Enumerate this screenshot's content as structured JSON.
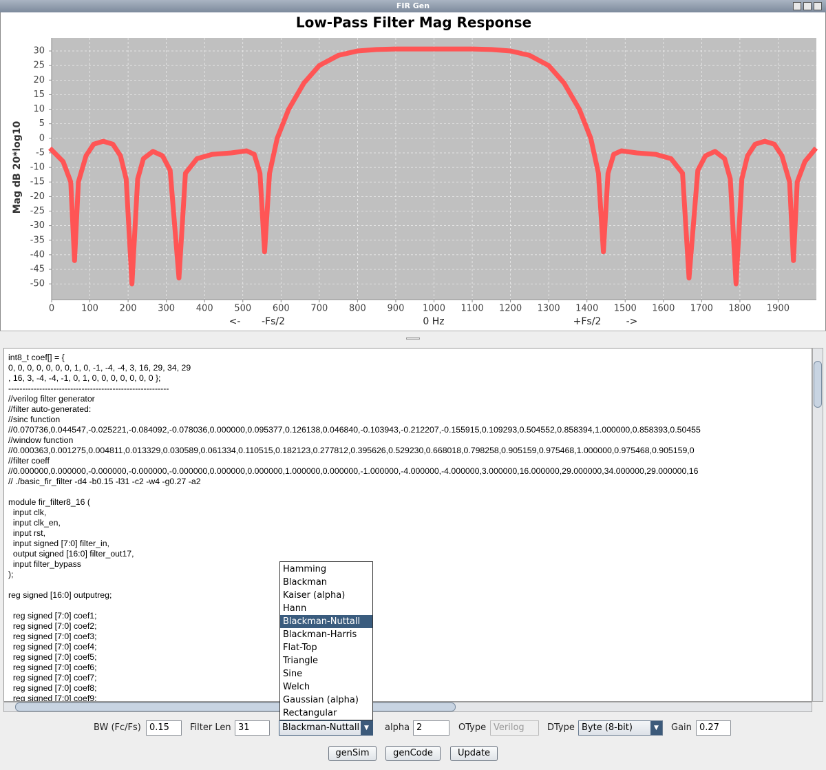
{
  "window": {
    "title": "FIR Gen"
  },
  "chart_data": {
    "type": "line",
    "title": "Low-Pass Filter Mag Response",
    "y_label": "Mag dB 20*log10",
    "annotations": [
      "<-",
      "-Fs/2",
      "0 Hz",
      "+Fs/2",
      "->"
    ],
    "x": [
      0,
      30,
      50,
      60,
      70,
      90,
      110,
      135,
      160,
      180,
      195,
      210,
      225,
      240,
      265,
      290,
      310,
      333,
      350,
      380,
      420,
      470,
      510,
      530,
      545,
      557,
      570,
      590,
      620,
      660,
      700,
      750,
      800,
      850,
      900,
      1000,
      1100,
      1150,
      1200,
      1250,
      1300,
      1340,
      1380,
      1410,
      1430,
      1443,
      1455,
      1470,
      1490,
      1530,
      1580,
      1620,
      1650,
      1667,
      1690,
      1710,
      1735,
      1760,
      1775,
      1790,
      1805,
      1820,
      1840,
      1865,
      1890,
      1910,
      1930,
      1940,
      1950,
      1970,
      1995
    ],
    "values": [
      -4,
      -8,
      -15,
      -42,
      -15,
      -6,
      -2,
      -1,
      -2,
      -6,
      -14,
      -50,
      -14,
      -7,
      -4.5,
      -6,
      -11,
      -48,
      -12,
      -7,
      -5.5,
      -5,
      -4.3,
      -5.5,
      -12,
      -39,
      -12,
      0,
      10,
      19,
      25,
      28.5,
      30,
      30.5,
      30.7,
      30.7,
      30.7,
      30.5,
      30,
      28.5,
      25,
      19,
      10,
      0,
      -12,
      -39,
      -12,
      -5.5,
      -4.3,
      -5,
      -5.5,
      -7,
      -12,
      -48,
      -11,
      -6,
      -4.5,
      -7,
      -14,
      -50,
      -14,
      -6,
      -2,
      -1,
      -2,
      -6,
      -15,
      -42,
      -15,
      -8,
      -4
    ],
    "color": "#ff5555",
    "xlim": [
      0,
      2000
    ],
    "ylim": [
      -55.4,
      34.5
    ],
    "xticks": [
      0,
      100,
      200,
      300,
      400,
      500,
      600,
      700,
      800,
      900,
      1000,
      1100,
      1200,
      1300,
      1400,
      1500,
      1600,
      1700,
      1800,
      1900
    ],
    "yticks": [
      30,
      25,
      20,
      15,
      10,
      5,
      0,
      -5,
      -10,
      -15,
      -20,
      -25,
      -30,
      -35,
      -40,
      -45,
      -50
    ],
    "grid": true
  },
  "code": "int8_t coef[] = {\n0, 0, 0, 0, 0, 0, 0, 1, 0, -1, -4, -4, 3, 16, 29, 34, 29\n, 16, 3, -4, -4, -1, 0, 1, 0, 0, 0, 0, 0, 0, 0 };\n---------------------------------------------------------\n//verilog filter generator\n//filter auto-generated:\n//sinc function\n//0.070736,0.044547,-0.025221,-0.084092,-0.078036,0.000000,0.095377,0.126138,0.046840,-0.103943,-0.212207,-0.155915,0.109293,0.504552,0.858394,1.000000,0.858393,0.50455\n//window function\n//0.000363,0.001275,0.004811,0.013329,0.030589,0.061334,0.110515,0.182123,0.277812,0.395626,0.529230,0.668018,0.798258,0.905159,0.975468,1.000000,0.975468,0.905159,0\n//filter coeff\n//0.000000,0.000000,-0.000000,-0.000000,-0.000000,0.000000,0.000000,1.000000,0.000000,-1.000000,-4.000000,-4.000000,3.000000,16.000000,29.000000,34.000000,29.000000,16\n// ./basic_fir_filter -d4 -b0.15 -l31 -c2 -w4 -g0.27 -a2\n\nmodule fir_filter8_16 (\n  input clk,\n  input clk_en,\n  input rst,\n  input signed [7:0] filter_in,\n  output signed [16:0] filter_out17,\n  input filter_bypass\n);\n\nreg signed [16:0] outputreg;\n\n  reg signed [7:0] coef1;\n  reg signed [7:0] coef2;\n  reg signed [7:0] coef3;\n  reg signed [7:0] coef4;\n  reg signed [7:0] coef5;\n  reg signed [7:0] coef6;\n  reg signed [7:0] coef7;\n  reg signed [7:0] coef8;\n  reg signed [7:0] coef9;",
  "dropdown": {
    "items": [
      "Hamming",
      "Blackman",
      "Kaiser (alpha)",
      "Hann",
      "Blackman-Nuttall",
      "Blackman-Harris",
      "Flat-Top",
      "Triangle",
      "Sine",
      "Welch",
      "Gaussian (alpha)",
      "Rectangular"
    ],
    "selected": 4
  },
  "controls": {
    "bw_label": "BW (Fc/Fs)",
    "bw": "0.15",
    "len_label": "Filter Len",
    "len": "31",
    "window": "Blackman-Nuttall",
    "alpha_label": "alpha",
    "alpha": "2",
    "otype_label": "OType",
    "otype": "Verilog",
    "dtype_label": "DType",
    "dtype": "Byte (8-bit)",
    "gain_label": "Gain",
    "gain": "0.27"
  },
  "buttons": [
    "genSim",
    "genCode",
    "Update"
  ]
}
